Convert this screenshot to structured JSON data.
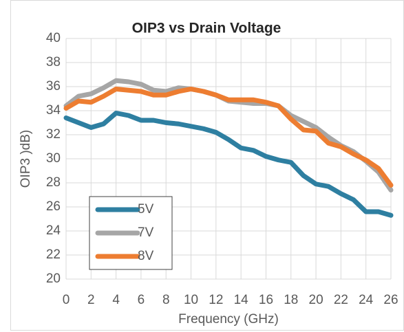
{
  "chart_data": {
    "type": "line",
    "title": "OIP3 vs Drain Voltage",
    "x_label": "Frequency (GHz)",
    "y_label": "OIP3 )dB)",
    "x": [
      0,
      1,
      2,
      3,
      4,
      5,
      6,
      7,
      8,
      9,
      10,
      11,
      12,
      13,
      14,
      15,
      16,
      17,
      18,
      19,
      20,
      21,
      22,
      23,
      24,
      25,
      26
    ],
    "series": [
      {
        "name": "5V",
        "color": "#2e7fa1",
        "values": [
          33.4,
          33.0,
          32.6,
          32.9,
          33.8,
          33.6,
          33.2,
          33.2,
          33.0,
          32.9,
          32.7,
          32.5,
          32.2,
          31.6,
          30.9,
          30.7,
          30.2,
          29.9,
          29.7,
          28.6,
          27.9,
          27.7,
          27.1,
          26.6,
          25.6,
          25.6,
          25.3
        ]
      },
      {
        "name": "7V",
        "color": "#a6a6a6",
        "values": [
          34.4,
          35.2,
          35.4,
          35.9,
          36.5,
          36.4,
          36.2,
          35.7,
          35.6,
          35.9,
          35.8,
          35.6,
          35.3,
          34.8,
          34.7,
          34.6,
          34.6,
          34.4,
          33.6,
          33.1,
          32.6,
          31.8,
          31.1,
          30.6,
          29.8,
          28.9,
          27.4
        ]
      },
      {
        "name": "8V",
        "color": "#ed7d31",
        "values": [
          34.2,
          34.8,
          34.7,
          35.2,
          35.8,
          35.7,
          35.6,
          35.3,
          35.3,
          35.6,
          35.8,
          35.6,
          35.3,
          34.9,
          34.9,
          34.9,
          34.7,
          34.4,
          33.3,
          32.4,
          32.3,
          31.3,
          31.0,
          30.4,
          29.9,
          29.2,
          27.8
        ]
      }
    ],
    "xlim": [
      0,
      26
    ],
    "xticks": [
      0,
      2,
      4,
      6,
      8,
      10,
      12,
      14,
      16,
      18,
      20,
      22,
      24,
      26
    ],
    "ylim": [
      20,
      40
    ],
    "yticks": [
      20,
      22,
      24,
      26,
      28,
      30,
      32,
      34,
      36,
      38,
      40
    ],
    "grid": true,
    "legend": "lower left"
  }
}
